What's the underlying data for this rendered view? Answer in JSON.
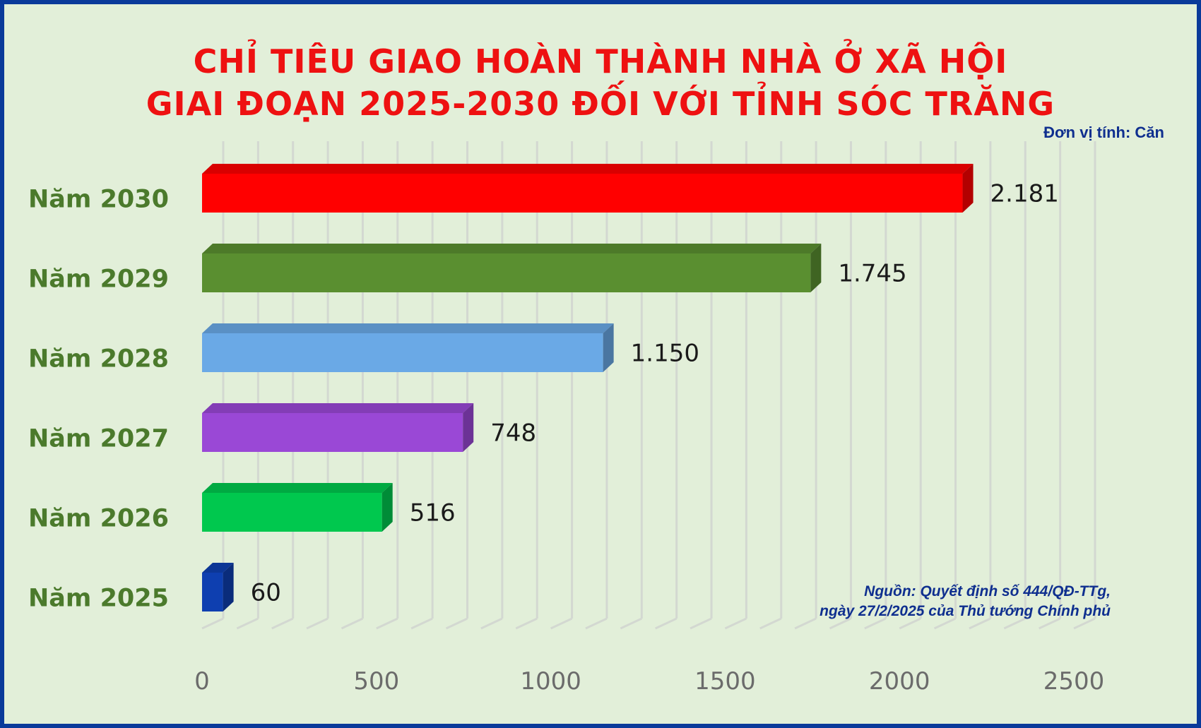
{
  "title_line1": "CHỈ TIÊU GIAO HOÀN THÀNH NHÀ Ở XÃ HỘI",
  "title_line2": "GIAI ĐOẠN 2025-2030 ĐỐI VỚI TỈNH SÓC TRĂNG",
  "unit_label": "Đơn vị tính: Căn",
  "source_line1": "Nguồn: Quyết định số 444/QĐ-TTg,",
  "source_line2": "ngày 27/2/2025 của Thủ tướng Chính phủ",
  "colors": {
    "title": "#ee1111",
    "category_label": "#4b7a2c",
    "frame": "#0a3a9a",
    "background": "#e2efd9"
  },
  "chart_data": {
    "type": "bar",
    "orientation": "horizontal",
    "categories": [
      "Năm 2030",
      "Năm 2029",
      "Năm 2028",
      "Năm 2027",
      "Năm 2026",
      "Năm 2025"
    ],
    "values": [
      2181,
      1745,
      1150,
      748,
      516,
      60
    ],
    "value_labels": [
      "2.181",
      "1.745",
      "1.150",
      "748",
      "516",
      "60"
    ],
    "bar_colors": [
      "#ff0000",
      "#5a8f30",
      "#6aa9e6",
      "#9a48d6",
      "#00c84e",
      "#0e3fb0"
    ],
    "x_ticks": [
      "0",
      "500",
      "1000",
      "1500",
      "2000",
      "2500"
    ],
    "xlim": [
      0,
      2500
    ],
    "grid": true
  }
}
